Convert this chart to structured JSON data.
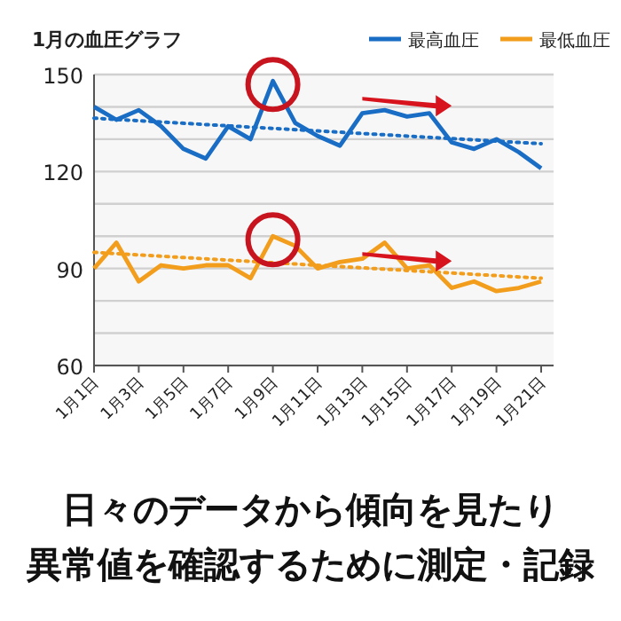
{
  "chart_data": {
    "type": "line",
    "title": "1月の血圧グラフ",
    "categories": [
      "1月1日",
      null,
      "1月3日",
      null,
      "1月5日",
      null,
      "1月7日",
      null,
      "1月9日",
      null,
      "1月11日",
      null,
      "1月13日",
      null,
      "1月15日",
      null,
      "1月17日",
      null,
      "1月19日",
      null,
      "1月21日"
    ],
    "series": [
      {
        "name": "最高血圧",
        "color": "#1a6dc4",
        "values": [
          140,
          136,
          139,
          134,
          127,
          124,
          134,
          130,
          148,
          135,
          131,
          128,
          138,
          139,
          137,
          138,
          129,
          127,
          130,
          126,
          121
        ]
      },
      {
        "name": "最低血圧",
        "color": "#f29d1c",
        "values": [
          90,
          98,
          86,
          91,
          90,
          91,
          91,
          87,
          100,
          97,
          90,
          92,
          93,
          98,
          90,
          91,
          84,
          86,
          83,
          84,
          86
        ]
      },
      {
        "type": "line",
        "color": "#1a6dc4",
        "line_style": "dotted",
        "x": [
          "1月1日",
          "1月21日"
        ],
        "values": [
          136.5,
          128.6
        ]
      },
      {
        "type": "line",
        "color": "#f29d1c",
        "line_style": "dotted",
        "x": [
          "1月1日",
          "1月21日"
        ],
        "values": [
          95,
          87
        ]
      }
    ],
    "ylim": [
      60,
      150
    ],
    "yticks": [
      60,
      {
        "value": 70,
        "label": null
      },
      {
        "value": 80,
        "label": null
      },
      90,
      {
        "value": 100,
        "label": null
      },
      {
        "value": 110,
        "label": null
      },
      120,
      {
        "value": 130,
        "label": null
      },
      {
        "value": 140,
        "label": null
      },
      150
    ],
    "grid": "y",
    "legend": "top right",
    "marker": "none",
    "line_style": "solid",
    "annotations": [
      "日々のデータから傾向を見たり",
      "異常値を確認するために測定・記録"
    ]
  }
}
